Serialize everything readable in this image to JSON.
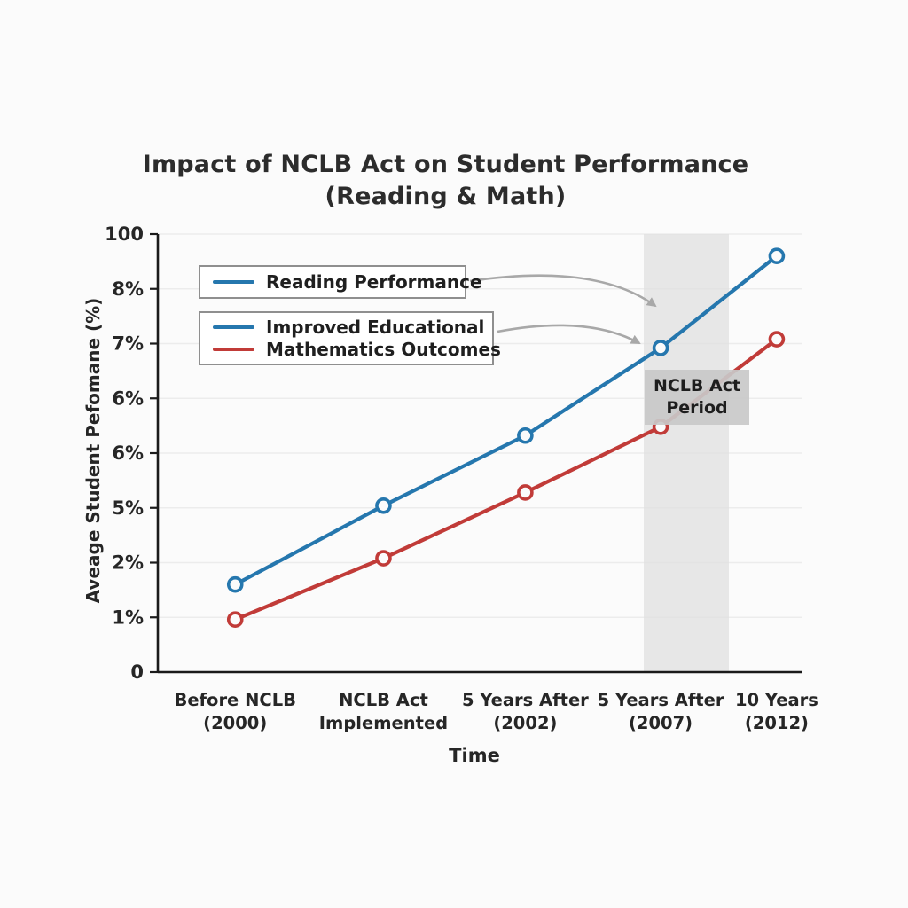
{
  "figure": {
    "background": "#fbfbfb"
  },
  "chart_data": {
    "type": "line",
    "title": "Impact of NCLB Act on Student Performance (Reading & Math)",
    "title_lines": [
      "Impact of NCLB Act on Student Performance",
      "(Reading & Math)"
    ],
    "xlabel": "Time",
    "ylabel": "Aveage Student Pefomane (%)",
    "ylim": [
      0,
      100
    ],
    "grid": "horizontal",
    "legend_position": "upper-left",
    "y_tick_labels": [
      "100",
      "8%",
      "7%",
      "6%",
      "6%",
      "5%",
      "2%",
      "1%",
      "0"
    ],
    "categories": [
      [
        "Before NCLB",
        "(2000)"
      ],
      [
        "NCLB Act",
        "Implemented"
      ],
      [
        "5 Years After",
        "(2002)"
      ],
      [
        "5 Years After",
        "(2007)"
      ],
      [
        "10 Years",
        "(2012)"
      ]
    ],
    "series": [
      {
        "name": "Reading Performance",
        "color": "#2577ae",
        "values": [
          20,
          38,
          54,
          74,
          95
        ]
      },
      {
        "name": "Mathematics Outcomes",
        "color": "#c13b38",
        "values": [
          12,
          26,
          41,
          56,
          76
        ]
      }
    ],
    "band": {
      "label": "NCLB Act Period",
      "label_lines": [
        "NCLB Act",
        "Period"
      ],
      "covers_category": "5 Years After (2007)",
      "fill": "#e0e0e0",
      "label_bg": "#c9c9c9"
    },
    "legend": {
      "box1_lines": [
        "Reading Performance"
      ],
      "box2_lines": [
        "Improved Educational",
        "Mathematics Outcomes"
      ]
    },
    "colors": {
      "reading": "#2577ae",
      "math": "#c13b38",
      "grid_line": "#ececec",
      "axis": "#1a1a1a",
      "arrow": "#a8a8a8",
      "text": "#262626"
    }
  }
}
